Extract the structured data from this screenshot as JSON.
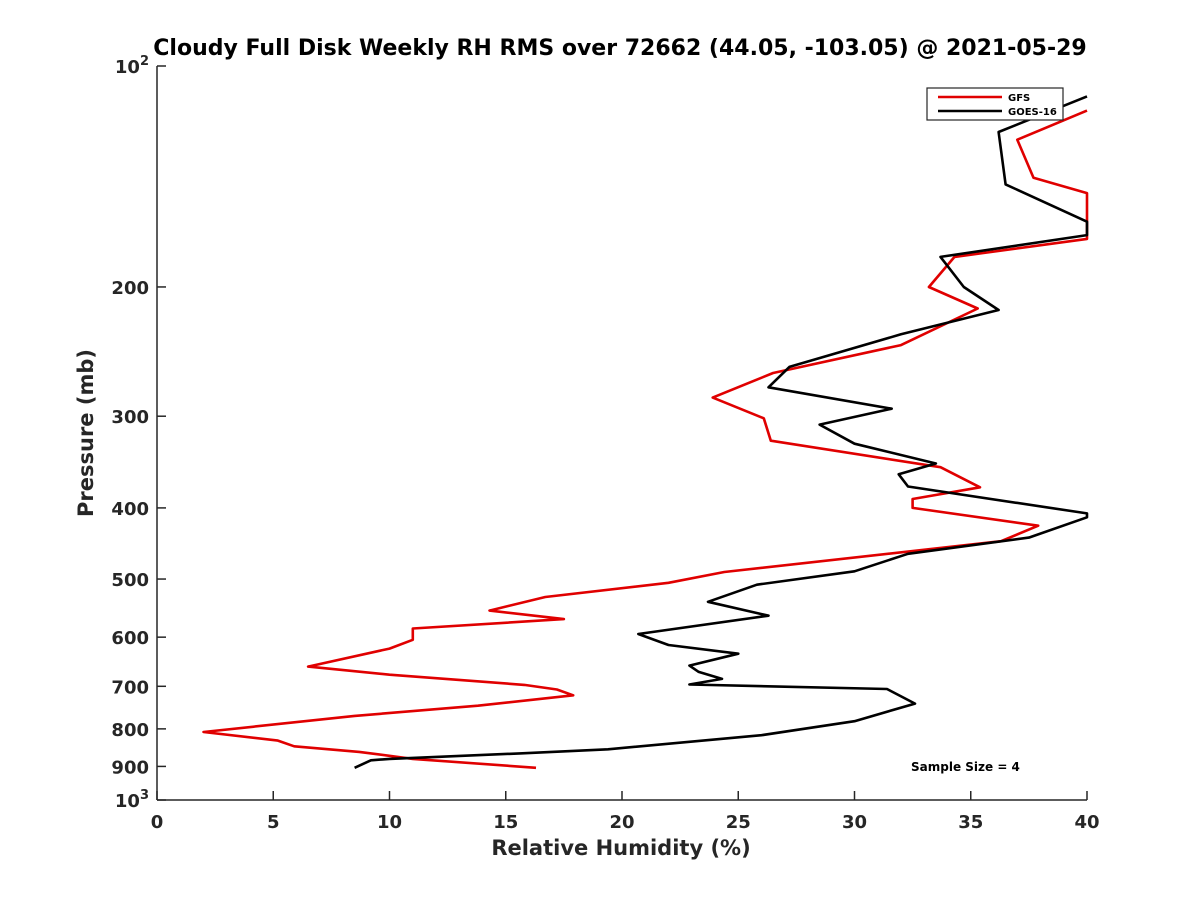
{
  "chart_data": {
    "type": "line",
    "title": "Cloudy Full Disk Weekly RH RMS over 72662 (44.05, -103.05) @ 2021-05-29",
    "xlabel": "Relative Humidity (%)",
    "ylabel": "Pressure (mb)",
    "xlim": [
      0,
      40
    ],
    "ylim": [
      100,
      1000
    ],
    "yscale": "log",
    "y_reversed": true,
    "grid": false,
    "legend_position": "top-right",
    "annotation": "Sample Size = 4",
    "x_ticks": [
      "0",
      "5",
      "10",
      "15",
      "20",
      "25",
      "30",
      "35",
      "40"
    ],
    "y_ticks": [
      {
        "value": 100,
        "base": "10",
        "exp": "2"
      },
      {
        "value": 200,
        "label": "200"
      },
      {
        "value": 300,
        "label": "300"
      },
      {
        "value": 400,
        "label": "400"
      },
      {
        "value": 500,
        "label": "500"
      },
      {
        "value": 600,
        "label": "600"
      },
      {
        "value": 700,
        "label": "700"
      },
      {
        "value": 800,
        "label": "800"
      },
      {
        "value": 900,
        "label": "900"
      },
      {
        "value": 1000,
        "base": "10",
        "exp": "3"
      }
    ],
    "series": [
      {
        "name": "GFS",
        "color": "#e00000",
        "points": [
          [
            40.0,
            115
          ],
          [
            37.0,
            126
          ],
          [
            37.7,
            142
          ],
          [
            40.0,
            149
          ],
          [
            40.0,
            172
          ],
          [
            34.3,
            182
          ],
          [
            33.2,
            200
          ],
          [
            35.3,
            214
          ],
          [
            32.0,
            240
          ],
          [
            26.5,
            262
          ],
          [
            23.9,
            283
          ],
          [
            26.1,
            302
          ],
          [
            26.4,
            324
          ],
          [
            33.7,
            352
          ],
          [
            35.4,
            375
          ],
          [
            32.5,
            389
          ],
          [
            32.5,
            400
          ],
          [
            37.9,
            423
          ],
          [
            36.3,
            444
          ],
          [
            24.4,
            489
          ],
          [
            22.0,
            506
          ],
          [
            16.7,
            529
          ],
          [
            14.3,
            552
          ],
          [
            17.5,
            567
          ],
          [
            11.0,
            584
          ],
          [
            11.0,
            605
          ],
          [
            10.0,
            622
          ],
          [
            6.5,
            658
          ],
          [
            10.0,
            675
          ],
          [
            15.8,
            697
          ],
          [
            17.2,
            707
          ],
          [
            17.9,
            720
          ],
          [
            13.8,
            744
          ],
          [
            8.5,
            768
          ],
          [
            2.0,
            808
          ],
          [
            5.2,
            830
          ],
          [
            5.9,
            845
          ],
          [
            8.7,
            860
          ],
          [
            11.0,
            879
          ],
          [
            16.3,
            904
          ]
        ]
      },
      {
        "name": "GOES-16",
        "color": "#000000",
        "points": [
          [
            40.0,
            110
          ],
          [
            36.2,
            123
          ],
          [
            36.5,
            145
          ],
          [
            40.0,
            163
          ],
          [
            40.0,
            170
          ],
          [
            33.7,
            182
          ],
          [
            34.7,
            200
          ],
          [
            36.2,
            215
          ],
          [
            32.0,
            232
          ],
          [
            27.2,
            257
          ],
          [
            26.3,
            274
          ],
          [
            31.6,
            293
          ],
          [
            28.5,
            308
          ],
          [
            30.0,
            327
          ],
          [
            33.5,
            348
          ],
          [
            31.9,
            360
          ],
          [
            32.3,
            374
          ],
          [
            40.0,
            407
          ],
          [
            40.0,
            412
          ],
          [
            37.5,
            439
          ],
          [
            32.3,
            462
          ],
          [
            30.0,
            488
          ],
          [
            25.8,
            509
          ],
          [
            23.7,
            537
          ],
          [
            26.3,
            561
          ],
          [
            20.7,
            594
          ],
          [
            22.0,
            615
          ],
          [
            25.0,
            632
          ],
          [
            22.9,
            656
          ],
          [
            23.3,
            669
          ],
          [
            24.3,
            684
          ],
          [
            22.9,
            696
          ],
          [
            31.4,
            706
          ],
          [
            32.6,
            739
          ],
          [
            30.0,
            781
          ],
          [
            26.0,
            816
          ],
          [
            19.4,
            853
          ],
          [
            15.6,
            864
          ],
          [
            10.0,
            879
          ],
          [
            9.2,
            883
          ],
          [
            8.5,
            904
          ]
        ]
      }
    ]
  }
}
